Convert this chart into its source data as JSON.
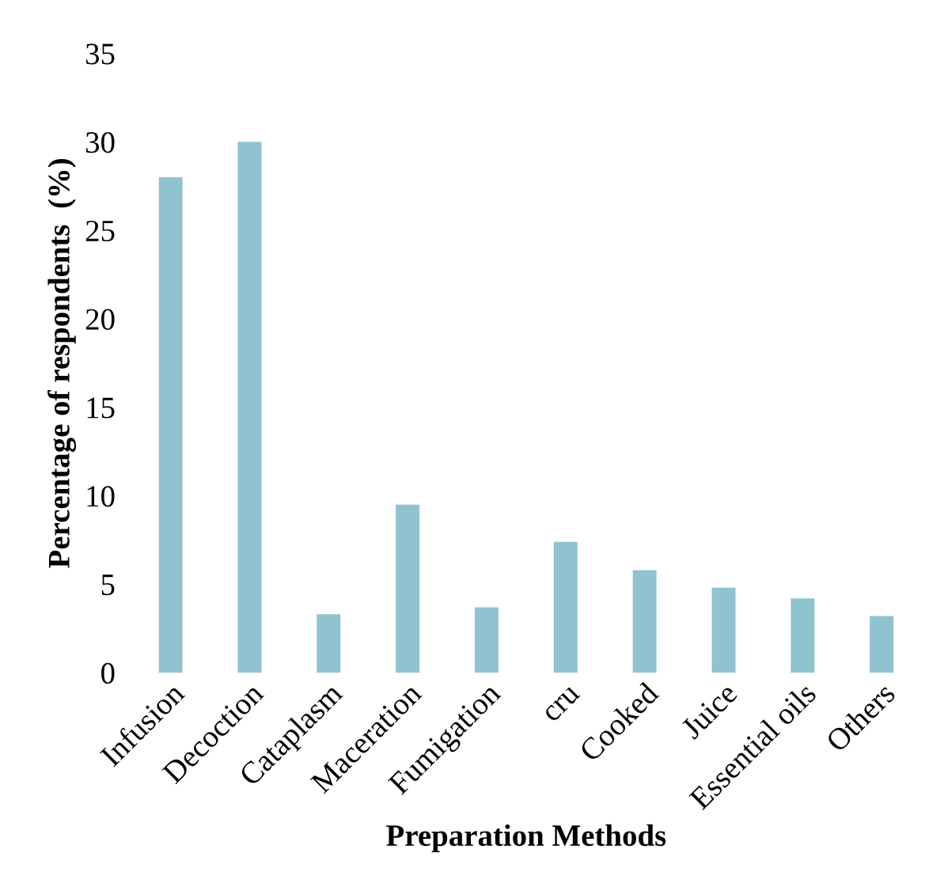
{
  "chart_data": {
    "type": "bar",
    "xlabel": "Preparation Methods",
    "ylabel": "Percentage of respondents  (%)",
    "categories": [
      "Infusion",
      "Decoction",
      "Cataplasm",
      "Maceration",
      "Fumigation",
      "cru",
      "Cooked",
      "Juice",
      "Essential oils",
      "Others"
    ],
    "values": [
      28,
      30,
      3.3,
      9.5,
      3.7,
      7.4,
      5.8,
      4.8,
      4.2,
      3.2
    ],
    "color": "#8ec3cf",
    "ylim": [
      0,
      35
    ],
    "yticks": [
      0,
      5,
      10,
      15,
      20,
      25,
      30,
      35
    ],
    "grid": false
  }
}
